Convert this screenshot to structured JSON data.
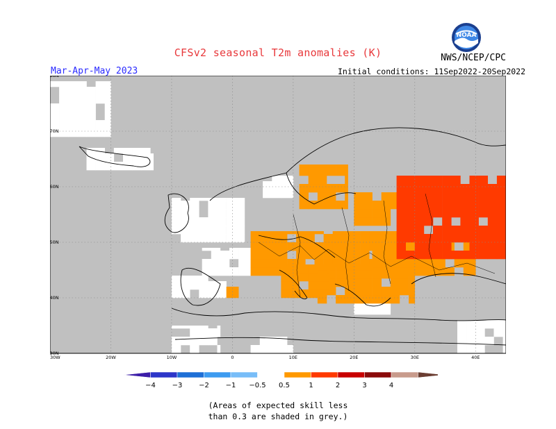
{
  "header": {
    "title": "CFSv2 seasonal T2m anomalies (K)",
    "agency": "NWS/NCEP/CPC",
    "season": "Mar-Apr-May 2023",
    "initial_conditions": "Initial conditions: 11Sep2022-20Sep2022",
    "logo_text": "NOAA"
  },
  "map": {
    "lon_range": [
      -30,
      45
    ],
    "lat_range": [
      30,
      80
    ],
    "lat_ticks": [
      {
        "value": 80,
        "label": "80N"
      },
      {
        "value": 70,
        "label": "70N"
      },
      {
        "value": 60,
        "label": "60N"
      },
      {
        "value": 50,
        "label": "50N"
      },
      {
        "value": 40,
        "label": "40N"
      },
      {
        "value": 30,
        "label": "30N"
      }
    ],
    "lon_ticks": [
      {
        "value": -30,
        "label": "30W"
      },
      {
        "value": -20,
        "label": "20W"
      },
      {
        "value": -10,
        "label": "10W"
      },
      {
        "value": 0,
        "label": "0"
      },
      {
        "value": 10,
        "label": "10E"
      },
      {
        "value": 20,
        "label": "20E"
      },
      {
        "value": 30,
        "label": "30E"
      },
      {
        "value": 40,
        "label": "40E"
      }
    ],
    "background_color": "#c0c0c0",
    "neutral_color": "#ffffff",
    "regions": [
      {
        "name": "iceland",
        "category": "neutral",
        "lon": [
          -24,
          -13
        ],
        "lat": [
          63,
          67
        ]
      },
      {
        "name": "greenland-east",
        "category": "neutral",
        "lon": [
          -30,
          -20
        ],
        "lat": [
          69,
          79
        ]
      },
      {
        "name": "uk-ireland",
        "category": "neutral",
        "lon": [
          -10,
          2
        ],
        "lat": [
          50,
          58
        ]
      },
      {
        "name": "france-west",
        "category": "neutral",
        "lon": [
          -5,
          3
        ],
        "lat": [
          44,
          49
        ]
      },
      {
        "name": "spain-north",
        "category": "neutral",
        "lon": [
          -10,
          -1
        ],
        "lat": [
          40,
          44
        ]
      },
      {
        "name": "morocco",
        "category": "neutral",
        "lon": [
          -10,
          -2
        ],
        "lat": [
          30,
          35
        ]
      },
      {
        "name": "north-africa-east",
        "category": "neutral",
        "lon": [
          3,
          10
        ],
        "lat": [
          30,
          33
        ]
      },
      {
        "name": "norway-south",
        "category": "neutral",
        "lon": [
          5,
          10
        ],
        "lat": [
          58,
          62
        ]
      },
      {
        "name": "greece",
        "category": "neutral",
        "lon": [
          20,
          26
        ],
        "lat": [
          37,
          42
        ]
      },
      {
        "name": "caucasus-east",
        "category": "neutral",
        "lon": [
          37,
          45
        ],
        "lat": [
          30,
          36
        ]
      },
      {
        "name": "central-europe",
        "category": "0.5-1",
        "lon": [
          3,
          30
        ],
        "lat": [
          44,
          52
        ]
      },
      {
        "name": "sweden-south",
        "category": "0.5-1",
        "lon": [
          11,
          19
        ],
        "lat": [
          56,
          64
        ]
      },
      {
        "name": "baltics",
        "category": "0.5-1",
        "lon": [
          20,
          28
        ],
        "lat": [
          53,
          59
        ]
      },
      {
        "name": "balkans",
        "category": "0.5-1",
        "lon": [
          14,
          30
        ],
        "lat": [
          39,
          46
        ]
      },
      {
        "name": "ukraine",
        "category": "0.5-1",
        "lon": [
          23,
          40
        ],
        "lat": [
          44,
          50
        ]
      },
      {
        "name": "italy",
        "category": "0.5-1",
        "lon": [
          8,
          16
        ],
        "lat": [
          40,
          46
        ]
      },
      {
        "name": "spain-east",
        "category": "0.5-1",
        "lon": [
          -1,
          1
        ],
        "lat": [
          40,
          42
        ]
      },
      {
        "name": "western-russia",
        "category": "1-2",
        "lon": [
          27,
          45
        ],
        "lat": [
          47,
          62
        ]
      }
    ]
  },
  "colorbar": {
    "items": [
      {
        "label": "−4",
        "color": "#3c1ea8",
        "kind": "arrow-left"
      },
      {
        "label": "−3",
        "color": "#2d36c9",
        "kind": "box"
      },
      {
        "label": "−2",
        "color": "#1e6fd6",
        "kind": "box"
      },
      {
        "label": "−1",
        "color": "#3d9bf0",
        "kind": "box"
      },
      {
        "label": "−0.5",
        "color": "#78bdf8",
        "kind": "box"
      },
      {
        "label": "0.5",
        "color": "#ffffff",
        "kind": "box"
      },
      {
        "label": "1",
        "color": "#ff9900",
        "kind": "box"
      },
      {
        "label": "2",
        "color": "#ff3a00",
        "kind": "box"
      },
      {
        "label": "3",
        "color": "#c80000",
        "kind": "box"
      },
      {
        "label": "4",
        "color": "#8a0a0a",
        "kind": "box"
      },
      {
        "label": "",
        "color": "#c89b8c",
        "kind": "box"
      },
      {
        "label": "",
        "color": "#6b3e32",
        "kind": "arrow-right"
      }
    ],
    "categories": {
      "neutral": "#ffffff",
      "0.5-1": "#ff9900",
      "1-2": "#ff3a00"
    }
  },
  "footnote": {
    "line1": "(Areas of expected skill less",
    "line2": "than 0.3 are shaded in grey.)"
  }
}
